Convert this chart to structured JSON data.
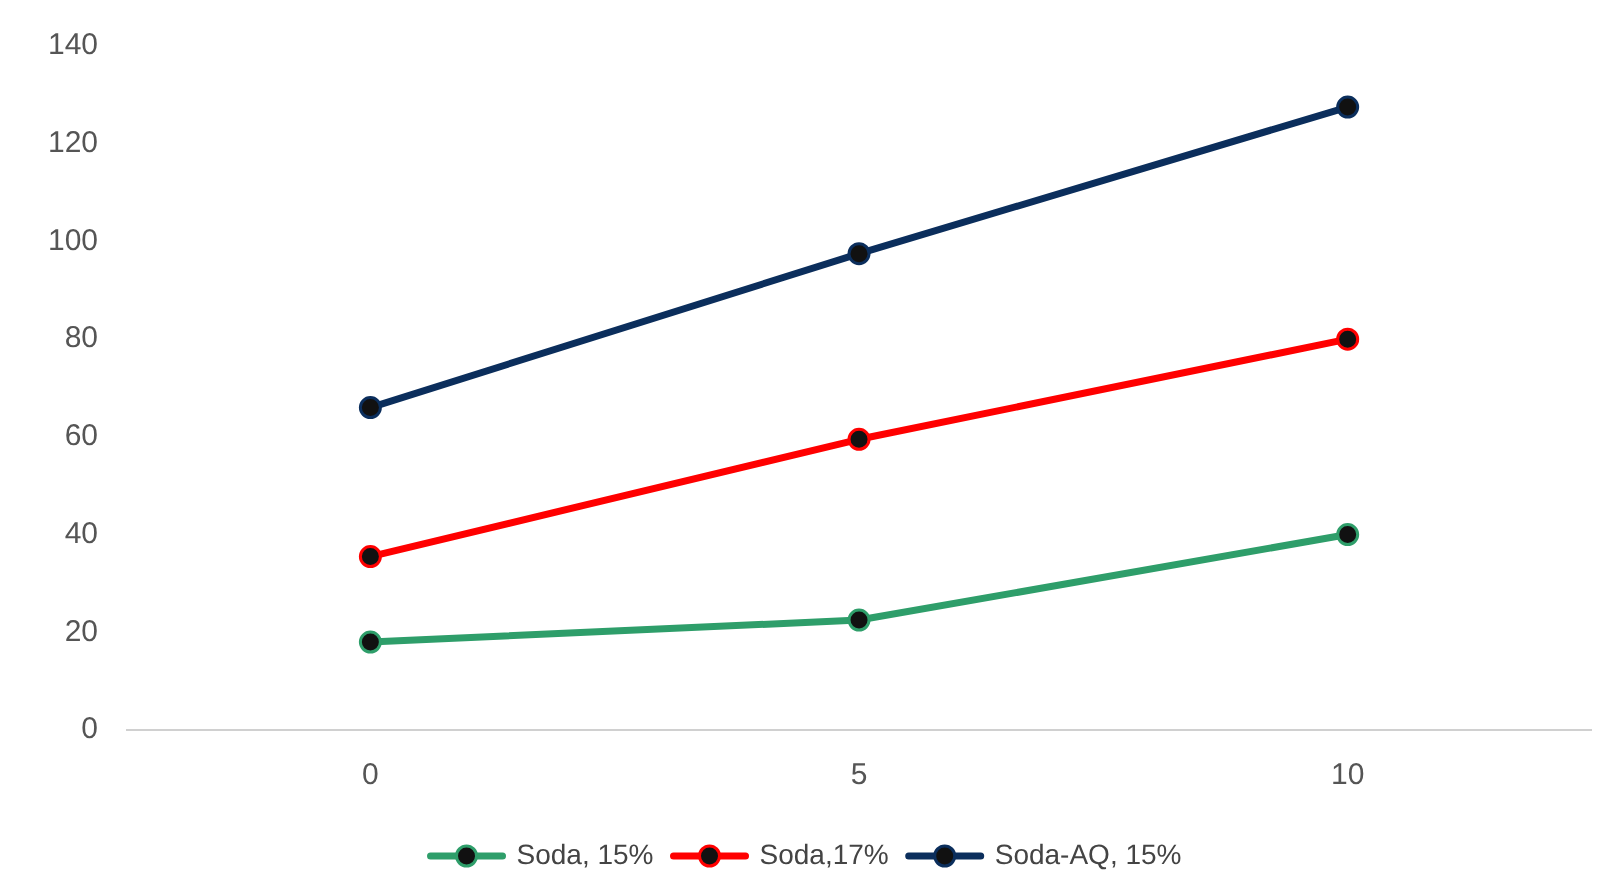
{
  "chart_data": {
    "type": "line",
    "categories": [
      "0",
      "5",
      "10"
    ],
    "series": [
      {
        "name": "Soda, 15%",
        "color": "#2e9e6a",
        "values": [
          18,
          22.5,
          40
        ]
      },
      {
        "name": "Soda,17%",
        "color": "#ff0000",
        "values": [
          35.5,
          59.5,
          80
        ]
      },
      {
        "name": "Soda-AQ, 15%",
        "color": "#0b2e5c",
        "values": [
          66,
          97.5,
          127.5
        ]
      }
    ],
    "ylim": [
      0,
      140
    ],
    "yticks": [
      0,
      20,
      40,
      60,
      80,
      100,
      120,
      140
    ],
    "grid": false,
    "legend": "bottom",
    "marker": "circle",
    "line_style": "solid"
  }
}
